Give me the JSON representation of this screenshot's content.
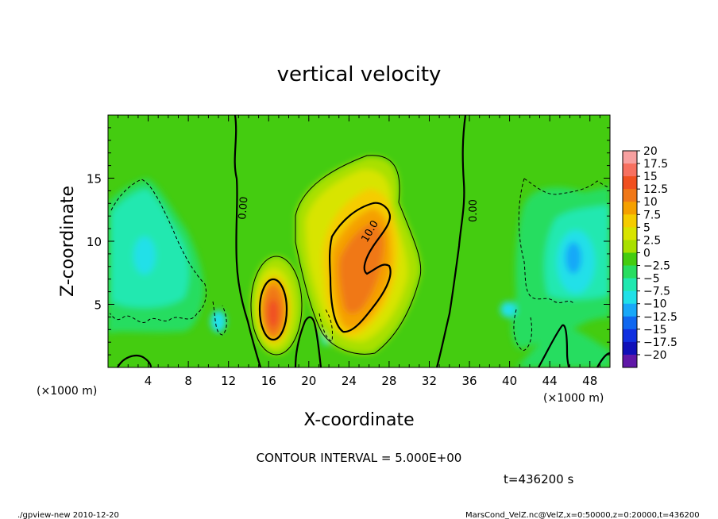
{
  "chart_data": {
    "type": "heatmap",
    "title": "vertical velocity",
    "xlabel": "X-coordinate",
    "ylabel": "Z-coordinate",
    "x_unit": "(×1000 m)",
    "y_unit": "(×1000 m)",
    "xlim": [
      0,
      50
    ],
    "ylim": [
      0,
      20
    ],
    "x_ticks": [
      4,
      8,
      12,
      16,
      20,
      24,
      28,
      32,
      36,
      40,
      44,
      48
    ],
    "y_ticks": [
      5,
      10,
      15
    ],
    "contour_labels": [
      "0.00",
      "10.0",
      "0.00"
    ],
    "contour_interval_text": "CONTOUR INTERVAL = 5.000E+00",
    "time_text": "t=436200 s",
    "footer_left": "./gpview-new  2010-12-20",
    "footer_right": "MarsCond_VelZ.nc@VelZ,x=0:50000,z=0:20000,t=436200",
    "colorbar": {
      "labels": [
        "20",
        "17.5",
        "15",
        "12.5",
        "10",
        "7.5",
        "5",
        "2.5",
        "0",
        "-2.5",
        "-5",
        "-7.5",
        "-10",
        "-12.5",
        "-15",
        "-17.5",
        "-20"
      ],
      "colors": [
        "#f7a0a0",
        "#f77060",
        "#f05020",
        "#f07818",
        "#f5a000",
        "#f5cc00",
        "#d8e400",
        "#a8e000",
        "#44cc10",
        "#28dd60",
        "#20e8b0",
        "#20e0e8",
        "#18a8f8",
        "#1068f0",
        "#1030e0",
        "#1010b8",
        "#6018a8"
      ]
    },
    "features": [
      {
        "name": "updraft-core-left",
        "x": 16.6,
        "z": 4.2,
        "peak": 15
      },
      {
        "name": "updraft-main",
        "x": 25,
        "z": 8,
        "peak": 12.5
      },
      {
        "name": "downdraft-left",
        "x": 4,
        "z": 9,
        "peak": -5
      },
      {
        "name": "downdraft-right",
        "x": 46,
        "z": 8.5,
        "peak": -7.5
      }
    ]
  }
}
